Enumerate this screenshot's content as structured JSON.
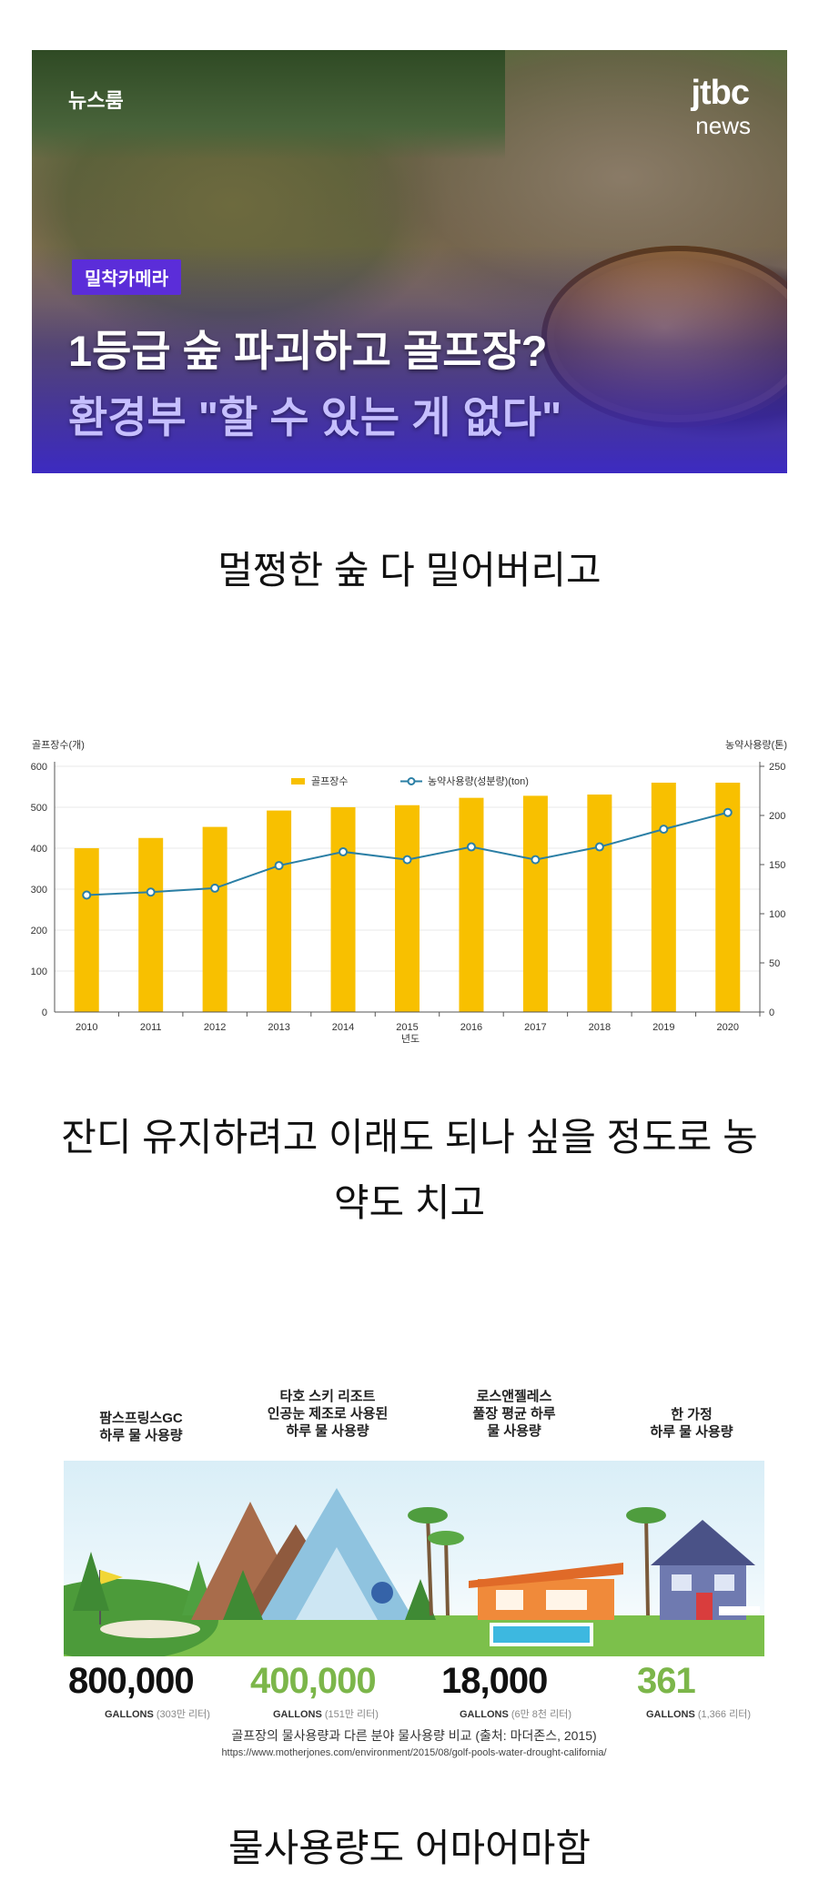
{
  "news": {
    "corner_label": "뉴스룸",
    "logo_top": "jtbc",
    "logo_bottom": "news",
    "badge": "밀착카메라",
    "headline1": "1등급 숲 파괴하고 골프장?",
    "headline2": "환경부 \"할 수 있는 게 없다\""
  },
  "captions": {
    "first": "멀쩡한 숲 다 밀어버리고",
    "second_line1": "잔디 유지하려고 이래도 되나 싶을 정도로 농",
    "second_line2": "약도 치고",
    "third": "물사용량도 어마어마함"
  },
  "chart_data": {
    "type": "bar",
    "categories": [
      "2010",
      "2011",
      "2012",
      "2013",
      "2014",
      "2015",
      "2016",
      "2017",
      "2018",
      "2019",
      "2020"
    ],
    "series": [
      {
        "name": "골프장수",
        "type": "bar",
        "axis": "left",
        "values": [
          400,
          425,
          452,
          492,
          500,
          505,
          523,
          528,
          531,
          560,
          560
        ]
      },
      {
        "name": "농약사용량(성분량)(ton)",
        "type": "line",
        "axis": "right",
        "values": [
          119,
          122,
          126,
          149,
          163,
          155,
          168,
          155,
          168,
          186,
          203
        ]
      }
    ],
    "ylabel_left": "골프장수(개)",
    "ylabel_right": "농약사용량(톤)",
    "xlabel": "년도",
    "ylim_left": [
      0,
      600
    ],
    "yticks_left": [
      0,
      100,
      200,
      300,
      400,
      500,
      600
    ],
    "ylim_right": [
      0,
      250
    ],
    "yticks_right": [
      0,
      50,
      100,
      150,
      200,
      250
    ],
    "legend_position": "top-center",
    "grid": true,
    "colors": {
      "bar": "#f8c000",
      "line": "#2b7fa5"
    }
  },
  "water": {
    "items": [
      {
        "label": "팜스프링스GC\n하루 물 사용량",
        "value": "800,000",
        "unit": "GALLONS",
        "liters": "(303만 리터)",
        "color": "#111111"
      },
      {
        "label": "타호 스키 리조트\n인공눈 제조로 사용된\n하루 물 사용량",
        "value": "400,000",
        "unit": "GALLONS",
        "liters": "(151만 리터)",
        "color": "#7cb64a"
      },
      {
        "label": "로스앤젤레스\n풀장 평균 하루\n물 사용량",
        "value": "18,000",
        "unit": "GALLONS",
        "liters": "(6만 8천 리터)",
        "color": "#111111"
      },
      {
        "label": "한 가정\n하루 물 사용량",
        "value": "361",
        "unit": "GALLONS",
        "liters": "(1,366 리터)",
        "color": "#7cb64a"
      }
    ],
    "source": "골프장의 물사용량과 다른 분야 물사용량 비교 (출처: 마더존스, 2015)",
    "url": "https://www.motherjones.com/environment/2015/08/golf-pools-water-drought-california/"
  }
}
